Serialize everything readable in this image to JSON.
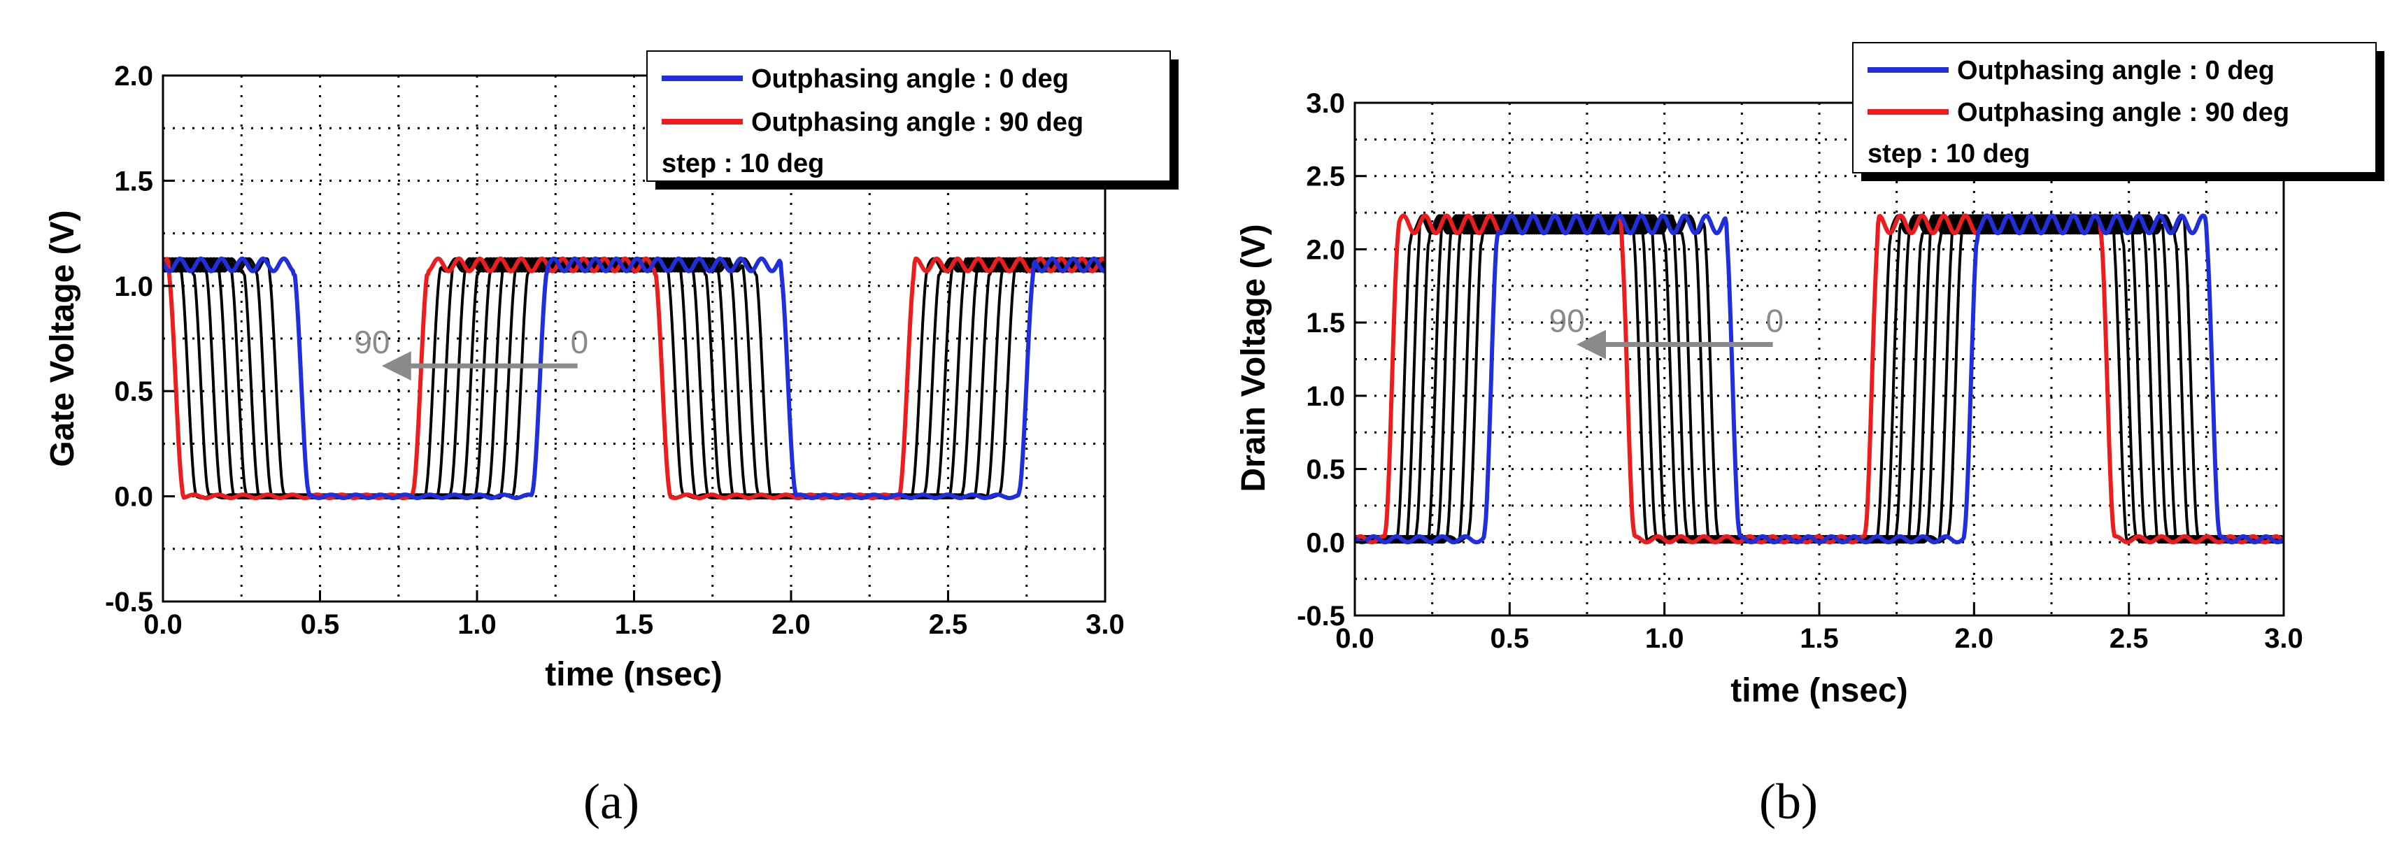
{
  "chart_data": [
    {
      "type": "line",
      "panel": "a",
      "caption": "(a)",
      "xlabel": "time (nsec)",
      "ylabel": "Gate Voltage (V)",
      "xlim": [
        0.0,
        3.0
      ],
      "ylim": [
        -0.5,
        2.0
      ],
      "xticks": [
        "0.0",
        "0.5",
        "1.0",
        "1.5",
        "2.0",
        "2.5",
        "3.0"
      ],
      "yticks": [
        "-0.5",
        "0.0",
        "0.5",
        "1.0",
        "1.5",
        "2.0"
      ],
      "grid": true,
      "legend_position": "top-right",
      "legend": [
        {
          "label": "Outphasing angle : 0 deg",
          "color": "#1f2fe0"
        },
        {
          "label": "Outphasing angle : 90 deg",
          "color": "#ee1c1c"
        },
        {
          "label": "step : 10 deg",
          "color": null
        }
      ],
      "annotation": {
        "from": "0",
        "to": "90",
        "arrow_from_x": 1.32,
        "arrow_to_x": 0.72,
        "y": 0.62
      },
      "waveform": {
        "high": 1.1,
        "low": 0.0,
        "period": 1.55,
        "fall_90deg": 0.04,
        "rise_90deg": 0.82,
        "step_shift": 0.04,
        "steps": 10
      },
      "series": [
        {
          "name": "90 deg",
          "color": "#ee1c1c",
          "fall": 0.04,
          "rise": 0.82
        },
        {
          "name": "80 deg",
          "color": "#000000",
          "fall": 0.08,
          "rise": 0.86
        },
        {
          "name": "70 deg",
          "color": "#000000",
          "fall": 0.12,
          "rise": 0.9
        },
        {
          "name": "60 deg",
          "color": "#000000",
          "fall": 0.16,
          "rise": 0.94
        },
        {
          "name": "50 deg",
          "color": "#000000",
          "fall": 0.2,
          "rise": 0.98
        },
        {
          "name": "40 deg",
          "color": "#000000",
          "fall": 0.24,
          "rise": 1.02
        },
        {
          "name": "30 deg",
          "color": "#000000",
          "fall": 0.28,
          "rise": 1.06
        },
        {
          "name": "20 deg",
          "color": "#000000",
          "fall": 0.32,
          "rise": 1.1
        },
        {
          "name": "10 deg",
          "color": "#000000",
          "fall": 0.36,
          "rise": 1.14
        },
        {
          "name": "0 deg",
          "color": "#1f2fe0",
          "fall": 0.44,
          "rise": 1.2
        }
      ]
    },
    {
      "type": "line",
      "panel": "b",
      "caption": "(b)",
      "xlabel": "time (nsec)",
      "ylabel": "Drain Voltage (V)",
      "xlim": [
        0.0,
        3.0
      ],
      "ylim": [
        -0.5,
        3.0
      ],
      "xticks": [
        "0.0",
        "0.5",
        "1.0",
        "1.5",
        "2.0",
        "2.5",
        "3.0"
      ],
      "yticks": [
        "-0.5",
        "0.0",
        "0.5",
        "1.0",
        "1.5",
        "2.0",
        "2.5",
        "3.0"
      ],
      "grid": true,
      "legend_position": "top-right",
      "legend": [
        {
          "label": "Outphasing angle : 0 deg",
          "color": "#1f2fe0"
        },
        {
          "label": "Outphasing angle : 90 deg",
          "color": "#ee1c1c"
        },
        {
          "label": "step : 10 deg",
          "color": null
        }
      ],
      "annotation": {
        "from": "0",
        "to": "90",
        "arrow_from_x": 1.35,
        "arrow_to_x": 0.74,
        "y": 1.35
      },
      "waveform": {
        "high": 2.17,
        "low": 0.02,
        "period": 1.55,
        "rise_90deg": 0.12,
        "fall_90deg": 0.88,
        "step_shift": 0.033,
        "steps": 10
      },
      "series": [
        {
          "name": "90 deg",
          "color": "#ee1c1c",
          "rise": 0.12,
          "fall": 0.88
        },
        {
          "name": "80 deg",
          "color": "#000000",
          "rise": 0.16,
          "fall": 0.92
        },
        {
          "name": "70 deg",
          "color": "#000000",
          "rise": 0.19,
          "fall": 0.95
        },
        {
          "name": "60 deg",
          "color": "#000000",
          "rise": 0.22,
          "fall": 0.98
        },
        {
          "name": "50 deg",
          "color": "#000000",
          "rise": 0.26,
          "fall": 1.02
        },
        {
          "name": "40 deg",
          "color": "#000000",
          "rise": 0.29,
          "fall": 1.05
        },
        {
          "name": "30 deg",
          "color": "#000000",
          "rise": 0.32,
          "fall": 1.08
        },
        {
          "name": "20 deg",
          "color": "#000000",
          "rise": 0.36,
          "fall": 1.12
        },
        {
          "name": "10 deg",
          "color": "#000000",
          "rise": 0.39,
          "fall": 1.15
        },
        {
          "name": "0 deg",
          "color": "#1f2fe0",
          "rise": 0.44,
          "fall": 1.22
        }
      ]
    }
  ]
}
